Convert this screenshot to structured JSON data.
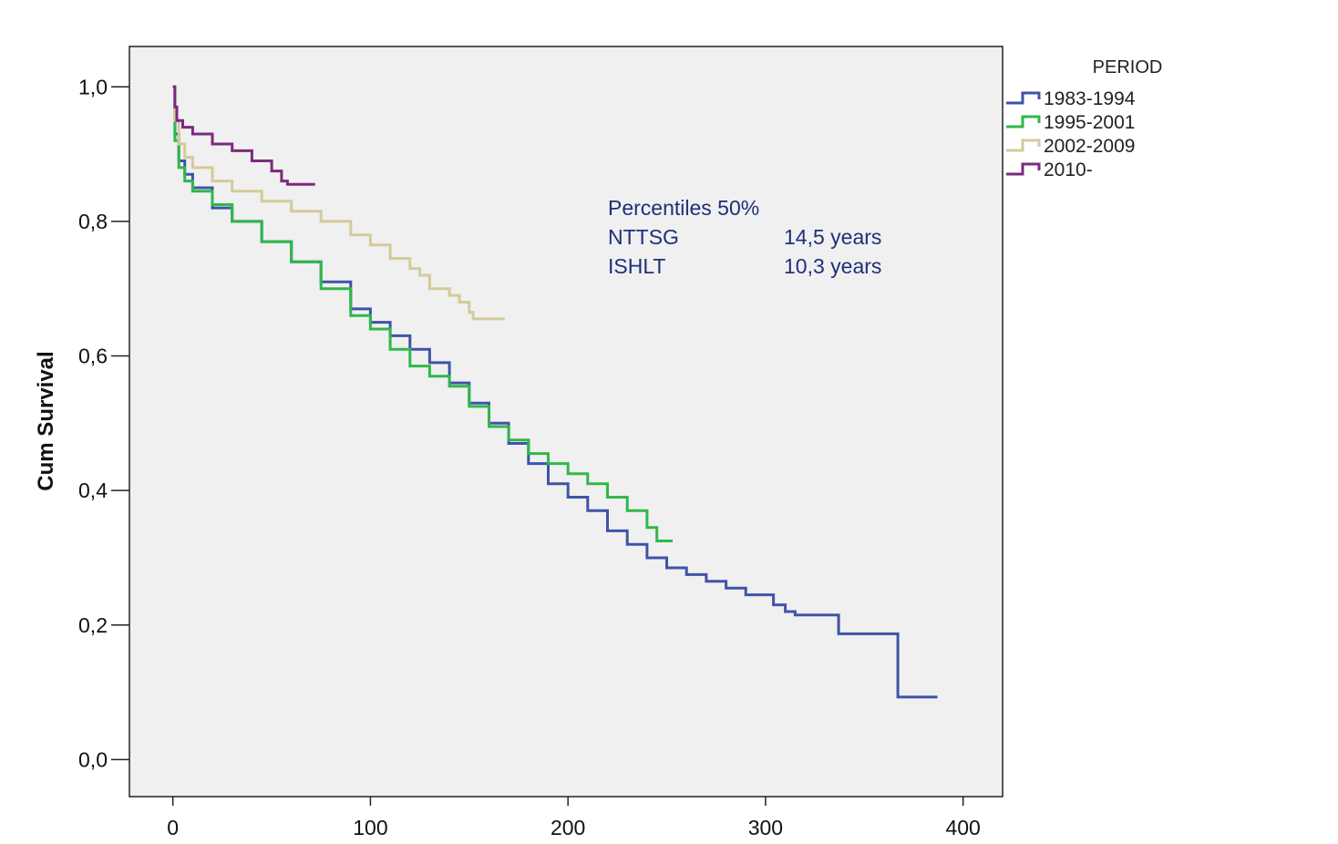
{
  "chart_data": {
    "type": "line",
    "title": "",
    "xlabel": "",
    "ylabel": "Cum Survival",
    "xlim": [
      -22,
      420
    ],
    "ylim": [
      -0.055,
      1.06
    ],
    "x_ticks": [
      0,
      100,
      200,
      300,
      400
    ],
    "x_tick_labels": [
      "0",
      "100",
      "200",
      "300",
      "400"
    ],
    "y_ticks": [
      0.0,
      0.2,
      0.4,
      0.6,
      0.8,
      1.0
    ],
    "y_tick_labels": [
      "0,0",
      "0,2",
      "0,4",
      "0,6",
      "0,8",
      "1,0"
    ],
    "grid": false,
    "legend": {
      "title": "PERIOD",
      "position": "top-right-outside"
    },
    "plot_background": "#f0f0f0",
    "series": [
      {
        "name": "1983-1994",
        "color": "#3f53a8",
        "points": [
          [
            0,
            1.0
          ],
          [
            1,
            0.93
          ],
          [
            3,
            0.89
          ],
          [
            6,
            0.87
          ],
          [
            10,
            0.85
          ],
          [
            20,
            0.82
          ],
          [
            30,
            0.8
          ],
          [
            45,
            0.77
          ],
          [
            60,
            0.74
          ],
          [
            75,
            0.71
          ],
          [
            90,
            0.67
          ],
          [
            100,
            0.65
          ],
          [
            110,
            0.63
          ],
          [
            120,
            0.61
          ],
          [
            130,
            0.59
          ],
          [
            140,
            0.56
          ],
          [
            150,
            0.53
          ],
          [
            160,
            0.5
          ],
          [
            170,
            0.47
          ],
          [
            180,
            0.44
          ],
          [
            190,
            0.41
          ],
          [
            200,
            0.39
          ],
          [
            210,
            0.37
          ],
          [
            220,
            0.34
          ],
          [
            230,
            0.32
          ],
          [
            240,
            0.3
          ],
          [
            250,
            0.285
          ],
          [
            260,
            0.275
          ],
          [
            270,
            0.265
          ],
          [
            280,
            0.255
          ],
          [
            290,
            0.245
          ],
          [
            300,
            0.245
          ],
          [
            304,
            0.23
          ],
          [
            310,
            0.22
          ],
          [
            315,
            0.215
          ],
          [
            320,
            0.215
          ],
          [
            337,
            0.215
          ],
          [
            337,
            0.187
          ],
          [
            367,
            0.187
          ],
          [
            367,
            0.093
          ],
          [
            387,
            0.093
          ]
        ]
      },
      {
        "name": "1995-2001",
        "color": "#2fb84a",
        "points": [
          [
            0,
            1.0
          ],
          [
            1,
            0.92
          ],
          [
            3,
            0.88
          ],
          [
            6,
            0.86
          ],
          [
            10,
            0.845
          ],
          [
            20,
            0.825
          ],
          [
            30,
            0.8
          ],
          [
            45,
            0.77
          ],
          [
            60,
            0.74
          ],
          [
            75,
            0.7
          ],
          [
            90,
            0.66
          ],
          [
            100,
            0.64
          ],
          [
            110,
            0.61
          ],
          [
            120,
            0.585
          ],
          [
            130,
            0.57
          ],
          [
            140,
            0.555
          ],
          [
            150,
            0.525
          ],
          [
            160,
            0.495
          ],
          [
            170,
            0.475
          ],
          [
            180,
            0.455
          ],
          [
            190,
            0.44
          ],
          [
            200,
            0.425
          ],
          [
            210,
            0.41
          ],
          [
            220,
            0.39
          ],
          [
            230,
            0.37
          ],
          [
            240,
            0.345
          ],
          [
            245,
            0.345
          ],
          [
            245,
            0.325
          ],
          [
            253,
            0.325
          ]
        ]
      },
      {
        "name": "2002-2009",
        "color": "#d3cb9a",
        "points": [
          [
            0,
            1.0
          ],
          [
            1,
            0.95
          ],
          [
            3,
            0.915
          ],
          [
            6,
            0.895
          ],
          [
            10,
            0.88
          ],
          [
            20,
            0.86
          ],
          [
            30,
            0.845
          ],
          [
            45,
            0.83
          ],
          [
            60,
            0.815
          ],
          [
            75,
            0.8
          ],
          [
            90,
            0.78
          ],
          [
            100,
            0.765
          ],
          [
            110,
            0.745
          ],
          [
            120,
            0.73
          ],
          [
            125,
            0.72
          ],
          [
            130,
            0.7
          ],
          [
            140,
            0.69
          ],
          [
            145,
            0.68
          ],
          [
            150,
            0.665
          ],
          [
            152,
            0.655
          ],
          [
            160,
            0.655
          ],
          [
            168,
            0.655
          ]
        ]
      },
      {
        "name": "2010-",
        "color": "#7b2a7e",
        "points": [
          [
            0,
            1.0
          ],
          [
            1,
            0.97
          ],
          [
            2,
            0.95
          ],
          [
            5,
            0.94
          ],
          [
            10,
            0.93
          ],
          [
            20,
            0.915
          ],
          [
            30,
            0.905
          ],
          [
            40,
            0.89
          ],
          [
            50,
            0.875
          ],
          [
            55,
            0.86
          ],
          [
            58,
            0.855
          ],
          [
            65,
            0.855
          ],
          [
            72,
            0.855
          ]
        ]
      }
    ],
    "annotation": {
      "lines": [
        {
          "label": "Percentiles 50%",
          "value": ""
        },
        {
          "label": "NTTSG",
          "value": "14,5 years"
        },
        {
          "label": "ISHLT",
          "value": "10,3 years"
        }
      ],
      "color": "#1f2f7a"
    }
  }
}
